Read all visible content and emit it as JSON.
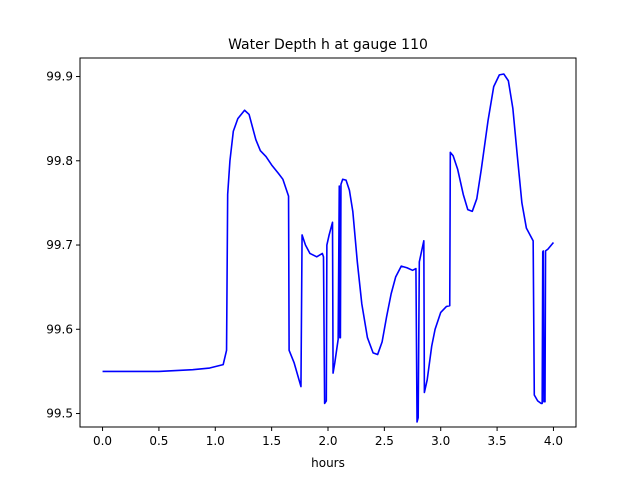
{
  "chart_data": {
    "type": "line",
    "title": "Water Depth h at gauge 110",
    "xlabel": "hours",
    "ylabel": "",
    "xlim": [
      -0.2,
      4.2
    ],
    "ylim": [
      99.484,
      99.922
    ],
    "x_ticks": [
      {
        "value": 0.0,
        "label": "0.0"
      },
      {
        "value": 0.5,
        "label": "0.5"
      },
      {
        "value": 1.0,
        "label": "1.0"
      },
      {
        "value": 1.5,
        "label": "1.5"
      },
      {
        "value": 2.0,
        "label": "2.0"
      },
      {
        "value": 2.5,
        "label": "2.5"
      },
      {
        "value": 3.0,
        "label": "3.0"
      },
      {
        "value": 3.5,
        "label": "3.5"
      },
      {
        "value": 4.0,
        "label": "4.0"
      }
    ],
    "y_ticks": [
      {
        "value": 99.5,
        "label": "99.5"
      },
      {
        "value": 99.6,
        "label": "99.6"
      },
      {
        "value": 99.7,
        "label": "99.7"
      },
      {
        "value": 99.8,
        "label": "99.8"
      },
      {
        "value": 99.9,
        "label": "99.9"
      }
    ],
    "grid": false,
    "series": [
      {
        "color": "#0000ff",
        "points": [
          [
            0.0,
            99.55
          ],
          [
            0.5,
            99.55
          ],
          [
            0.8,
            99.552
          ],
          [
            0.95,
            99.554
          ],
          [
            1.07,
            99.558
          ],
          [
            1.1,
            99.575
          ],
          [
            1.11,
            99.76
          ],
          [
            1.13,
            99.8
          ],
          [
            1.16,
            99.835
          ],
          [
            1.2,
            99.85
          ],
          [
            1.26,
            99.86
          ],
          [
            1.3,
            99.855
          ],
          [
            1.36,
            99.825
          ],
          [
            1.4,
            99.812
          ],
          [
            1.45,
            99.805
          ],
          [
            1.5,
            99.795
          ],
          [
            1.56,
            99.785
          ],
          [
            1.6,
            99.778
          ],
          [
            1.65,
            99.758
          ],
          [
            1.655,
            99.575
          ],
          [
            1.7,
            99.56
          ],
          [
            1.76,
            99.532
          ],
          [
            1.77,
            99.712
          ],
          [
            1.8,
            99.7
          ],
          [
            1.84,
            99.69
          ],
          [
            1.9,
            99.686
          ],
          [
            1.95,
            99.69
          ],
          [
            1.96,
            99.686
          ],
          [
            1.97,
            99.512
          ],
          [
            1.985,
            99.515
          ],
          [
            1.99,
            99.7
          ],
          [
            2.01,
            99.712
          ],
          [
            2.04,
            99.727
          ],
          [
            2.045,
            99.548
          ],
          [
            2.06,
            99.56
          ],
          [
            2.09,
            99.588
          ],
          [
            2.1,
            99.77
          ],
          [
            2.105,
            99.59
          ],
          [
            2.11,
            99.59
          ],
          [
            2.115,
            99.772
          ],
          [
            2.13,
            99.778
          ],
          [
            2.16,
            99.777
          ],
          [
            2.19,
            99.765
          ],
          [
            2.22,
            99.74
          ],
          [
            2.26,
            99.68
          ],
          [
            2.3,
            99.63
          ],
          [
            2.35,
            99.59
          ],
          [
            2.4,
            99.572
          ],
          [
            2.44,
            99.57
          ],
          [
            2.48,
            99.585
          ],
          [
            2.52,
            99.615
          ],
          [
            2.56,
            99.642
          ],
          [
            2.6,
            99.662
          ],
          [
            2.65,
            99.675
          ],
          [
            2.7,
            99.673
          ],
          [
            2.75,
            99.67
          ],
          [
            2.78,
            99.672
          ],
          [
            2.79,
            99.49
          ],
          [
            2.8,
            99.495
          ],
          [
            2.81,
            99.68
          ],
          [
            2.85,
            99.705
          ],
          [
            2.855,
            99.525
          ],
          [
            2.88,
            99.54
          ],
          [
            2.92,
            99.58
          ],
          [
            2.95,
            99.6
          ],
          [
            3.0,
            99.62
          ],
          [
            3.05,
            99.627
          ],
          [
            3.08,
            99.628
          ],
          [
            3.085,
            99.81
          ],
          [
            3.11,
            99.806
          ],
          [
            3.15,
            99.79
          ],
          [
            3.2,
            99.76
          ],
          [
            3.24,
            99.742
          ],
          [
            3.28,
            99.74
          ],
          [
            3.32,
            99.755
          ],
          [
            3.36,
            99.79
          ],
          [
            3.42,
            99.848
          ],
          [
            3.47,
            99.888
          ],
          [
            3.52,
            99.902
          ],
          [
            3.56,
            99.903
          ],
          [
            3.6,
            99.895
          ],
          [
            3.64,
            99.862
          ],
          [
            3.68,
            99.805
          ],
          [
            3.72,
            99.75
          ],
          [
            3.76,
            99.72
          ],
          [
            3.8,
            99.71
          ],
          [
            3.82,
            99.705
          ],
          [
            3.83,
            99.522
          ],
          [
            3.86,
            99.515
          ],
          [
            3.89,
            99.512
          ],
          [
            3.9,
            99.512
          ],
          [
            3.905,
            99.692
          ],
          [
            3.91,
            99.693
          ],
          [
            3.915,
            99.514
          ],
          [
            3.925,
            99.514
          ],
          [
            3.93,
            99.693
          ],
          [
            3.95,
            99.695
          ],
          [
            4.0,
            99.703
          ]
        ]
      }
    ]
  }
}
